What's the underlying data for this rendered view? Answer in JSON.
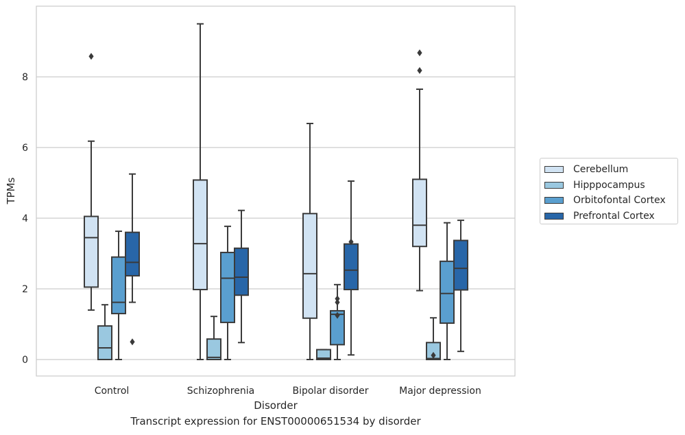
{
  "chart_data": {
    "type": "box",
    "title": "",
    "caption": "Transcript expression for ENST00000651534 by disorder",
    "xlabel": "Disorder",
    "ylabel": "TPMs",
    "ylim": [
      -0.47,
      9.92
    ],
    "yticks": [
      "0",
      "2",
      "4",
      "6",
      "8"
    ],
    "categories": [
      "Control",
      "Schizophrenia",
      "Bipolar disorder",
      "Major depression"
    ],
    "grid": "horizontal",
    "legend_position": "right",
    "series": [
      {
        "name": "Cerebellum",
        "color": "#d1e3f3",
        "boxes": [
          {
            "whislo": 1.4,
            "q1": 2.05,
            "med": 3.45,
            "q3": 4.05,
            "whishi": 6.18,
            "fliers": [
              8.58
            ]
          },
          {
            "whislo": 0.0,
            "q1": 1.98,
            "med": 3.28,
            "q3": 5.08,
            "whishi": 9.5,
            "fliers": []
          },
          {
            "whislo": 0.0,
            "q1": 1.17,
            "med": 2.43,
            "q3": 4.13,
            "whishi": 6.68,
            "fliers": []
          },
          {
            "whislo": 1.95,
            "q1": 3.2,
            "med": 3.8,
            "q3": 5.1,
            "whishi": 7.65,
            "fliers": [
              8.18,
              8.68
            ]
          }
        ]
      },
      {
        "name": "Hipppocampus",
        "color": "#9ac8e0",
        "boxes": [
          {
            "whislo": 0.0,
            "q1": 0.0,
            "med": 0.33,
            "q3": 0.95,
            "whishi": 1.55,
            "fliers": []
          },
          {
            "whislo": 0.0,
            "q1": 0.0,
            "med": 0.06,
            "q3": 0.58,
            "whishi": 1.22,
            "fliers": []
          },
          {
            "whislo": 0.0,
            "q1": 0.0,
            "med": 0.04,
            "q3": 0.28,
            "whishi": 0.28,
            "fliers": []
          },
          {
            "whislo": 0.0,
            "q1": 0.0,
            "med": 0.03,
            "q3": 0.48,
            "whishi": 1.18,
            "fliers": [
              0.12
            ]
          }
        ]
      },
      {
        "name": "Orbitofontal Cortex",
        "color": "#5a9fcf",
        "boxes": [
          {
            "whislo": 0.0,
            "q1": 1.3,
            "med": 1.62,
            "q3": 2.9,
            "whishi": 3.63,
            "fliers": []
          },
          {
            "whislo": 0.0,
            "q1": 1.05,
            "med": 2.3,
            "q3": 3.03,
            "whishi": 3.77,
            "fliers": []
          },
          {
            "whislo": 0.0,
            "q1": 0.42,
            "med": 1.28,
            "q3": 1.38,
            "whishi": 2.12,
            "fliers": [
              1.25,
              1.62,
              1.72
            ]
          },
          {
            "whislo": 0.0,
            "q1": 1.03,
            "med": 1.87,
            "q3": 2.78,
            "whishi": 3.87,
            "fliers": []
          }
        ]
      },
      {
        "name": "Prefrontal Cortex",
        "color": "#2866a8",
        "boxes": [
          {
            "whislo": 1.62,
            "q1": 2.37,
            "med": 2.75,
            "q3": 3.6,
            "whishi": 5.25,
            "fliers": [
              0.5
            ]
          },
          {
            "whislo": 0.48,
            "q1": 1.82,
            "med": 2.33,
            "q3": 3.15,
            "whishi": 4.22,
            "fliers": []
          },
          {
            "whislo": 0.13,
            "q1": 1.98,
            "med": 2.53,
            "q3": 3.27,
            "whishi": 5.05,
            "fliers": [
              3.33
            ]
          },
          {
            "whislo": 0.23,
            "q1": 1.97,
            "med": 2.58,
            "q3": 3.37,
            "whishi": 3.94,
            "fliers": []
          }
        ]
      }
    ]
  }
}
